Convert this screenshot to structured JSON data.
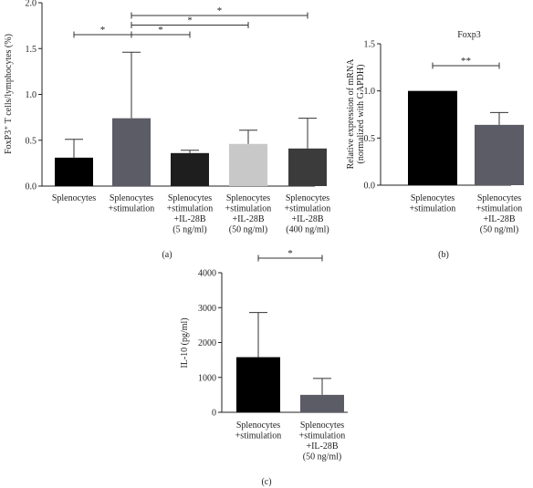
{
  "chart_data": [
    {
      "type": "bar",
      "panel_label": "(a)",
      "title": "",
      "ylabel": "FoxP3⁺ T cells/lymphocytes (%)",
      "ylim": [
        0,
        2.0
      ],
      "yticks": [
        "0.0",
        "0.5",
        "1.0",
        "1.5",
        "2.0"
      ],
      "ytick_values": [
        0,
        0.5,
        1.0,
        1.5,
        2.0
      ],
      "categories": [
        [
          "Splenocytes"
        ],
        [
          "Splenocytes",
          "+stimulation"
        ],
        [
          "Splenocytes",
          "+stimulation",
          "+IL-28B",
          "(5 ng/ml)"
        ],
        [
          "Splenocytes",
          "+stimulation",
          "+IL-28B",
          "(50 ng/ml)"
        ],
        [
          "Splenocytes",
          "+stimulation",
          "+IL-28B",
          "(400 ng/ml)"
        ]
      ],
      "values": [
        0.31,
        0.74,
        0.36,
        0.46,
        0.41
      ],
      "errors": [
        0.2,
        0.72,
        0.03,
        0.15,
        0.33
      ],
      "colors": [
        "#000000",
        "#5c5c66",
        "#1e1e1e",
        "#c8c8c8",
        "#3b3b3b"
      ],
      "significance": [
        {
          "from": 0,
          "to": 1,
          "label": "*"
        },
        {
          "from": 1,
          "to": 2,
          "label": "*"
        },
        {
          "from": 1,
          "to": 3,
          "label": "*"
        },
        {
          "from": 1,
          "to": 4,
          "label": "*"
        }
      ]
    },
    {
      "type": "bar",
      "panel_label": "(b)",
      "title": "Foxp3",
      "ylabel": "Relative expression of mRNA",
      "ylabel2": "(normalized with GAPDH)",
      "ylim": [
        0,
        1.5
      ],
      "yticks": [
        "0.0",
        "0.5",
        "1.0",
        "1.5"
      ],
      "ytick_values": [
        0,
        0.5,
        1.0,
        1.5
      ],
      "categories": [
        [
          "Splenocytes",
          "+stimulation"
        ],
        [
          "Splenocytes",
          "+stimulation",
          "+IL-28B",
          "(50 ng/ml)"
        ]
      ],
      "values": [
        1.0,
        0.64
      ],
      "errors": [
        0.0,
        0.13
      ],
      "colors": [
        "#000000",
        "#5c5c66"
      ],
      "significance": [
        {
          "from": 0,
          "to": 1,
          "label": "**"
        }
      ]
    },
    {
      "type": "bar",
      "panel_label": "(c)",
      "title": "",
      "ylabel": "IL-10 (pg/ml)",
      "ylim": [
        0,
        4000
      ],
      "yticks": [
        "0",
        "1000",
        "2000",
        "3000",
        "4000"
      ],
      "ytick_values": [
        0,
        1000,
        2000,
        3000,
        4000
      ],
      "categories": [
        [
          "Splenocytes",
          "+stimulation"
        ],
        [
          "Splenocytes",
          "+stimulation",
          "+IL-28B",
          "(50 ng/ml)"
        ]
      ],
      "values": [
        1580,
        500
      ],
      "errors": [
        1280,
        470
      ],
      "colors": [
        "#000000",
        "#5c5c66"
      ],
      "significance": [
        {
          "from": 0,
          "to": 1,
          "label": "*"
        }
      ]
    }
  ]
}
